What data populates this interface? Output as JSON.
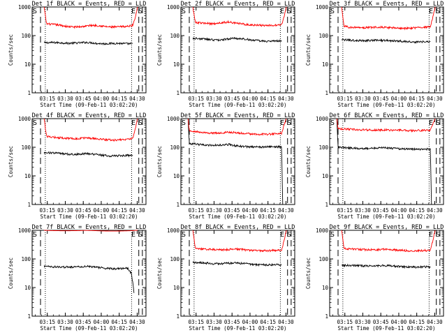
{
  "colors": {
    "events": "#000000",
    "lld": "#ff0000",
    "frame": "#000000",
    "background": "#ffffff"
  },
  "y_axis_label": "Counts/sec",
  "x_axis_label": "Start Time (09-Feb-11 03:02:20)",
  "x_tick_labels": [
    "03:15",
    "03:30",
    "03:45",
    "04:00",
    "04:15",
    "04:30"
  ],
  "y_tick_labels": [
    "1",
    "10",
    "100",
    "1000"
  ],
  "chart_data": [
    {
      "type": "line",
      "title": "Det 1f BLACK = Events, RED = LLD",
      "x_unit": "minutes after 03:02:20",
      "xlim": [
        0,
        95
      ],
      "ylim": [
        1,
        1000
      ],
      "y_scale": "log",
      "grid": false,
      "edge_labels": [
        "S",
        "E",
        "S"
      ],
      "series": [
        {
          "name": "Events",
          "color": "#000000",
          "x": [
            10,
            15,
            20,
            25,
            30,
            35,
            40,
            45,
            50,
            55,
            60,
            65,
            70,
            75,
            80,
            84
          ],
          "values": [
            56,
            57,
            57,
            56,
            54,
            55,
            56,
            58,
            56,
            53,
            52,
            53,
            54,
            53,
            52,
            52
          ]
        },
        {
          "name": "LLD",
          "color": "#ff0000",
          "x": [
            10,
            12,
            15,
            20,
            25,
            30,
            35,
            40,
            45,
            50,
            55,
            60,
            65,
            70,
            75,
            80,
            84,
            86,
            88
          ],
          "values": [
            1000,
            260,
            250,
            240,
            225,
            205,
            200,
            205,
            215,
            230,
            225,
            210,
            200,
            200,
            205,
            210,
            230,
            420,
            1000
          ]
        }
      ],
      "dashed_lines_x": [
        7,
        89,
        92
      ],
      "dotted_lines_x": [
        11,
        83
      ]
    },
    {
      "type": "line",
      "title": "Det 2f BLACK = Events, RED = LLD",
      "x_unit": "minutes after 03:02:20",
      "xlim": [
        0,
        95
      ],
      "ylim": [
        1,
        1000
      ],
      "y_scale": "log",
      "grid": false,
      "edge_labels": [
        "S",
        "E",
        "S"
      ],
      "series": [
        {
          "name": "Events",
          "color": "#000000",
          "x": [
            10,
            15,
            20,
            25,
            30,
            35,
            40,
            45,
            50,
            55,
            60,
            65,
            70,
            75,
            80,
            84
          ],
          "values": [
            80,
            78,
            76,
            72,
            70,
            72,
            78,
            80,
            78,
            74,
            70,
            66,
            64,
            63,
            65,
            66
          ]
        },
        {
          "name": "LLD",
          "color": "#ff0000",
          "x": [
            10,
            12,
            15,
            20,
            25,
            30,
            35,
            40,
            45,
            50,
            55,
            60,
            65,
            70,
            75,
            80,
            84,
            86,
            88
          ],
          "values": [
            1000,
            290,
            280,
            270,
            260,
            265,
            285,
            300,
            280,
            260,
            245,
            235,
            230,
            225,
            225,
            230,
            240,
            450,
            1000
          ]
        }
      ],
      "dashed_lines_x": [
        7,
        89,
        92
      ],
      "dotted_lines_x": [
        11,
        83
      ]
    },
    {
      "type": "line",
      "title": "Det 3f BLACK = Events, RED = LLD",
      "x_unit": "minutes after 03:02:20",
      "xlim": [
        0,
        95
      ],
      "ylim": [
        1,
        1000
      ],
      "y_scale": "log",
      "grid": false,
      "edge_labels": [
        "S",
        "E",
        "S"
      ],
      "series": [
        {
          "name": "Events",
          "color": "#000000",
          "x": [
            10,
            15,
            20,
            25,
            30,
            35,
            40,
            45,
            50,
            55,
            60,
            65,
            70,
            75,
            80,
            84
          ],
          "values": [
            72,
            70,
            68,
            67,
            67,
            68,
            69,
            68,
            67,
            66,
            64,
            62,
            60,
            60,
            61,
            60
          ]
        },
        {
          "name": "LLD",
          "color": "#ff0000",
          "x": [
            10,
            12,
            15,
            20,
            25,
            30,
            35,
            40,
            45,
            50,
            55,
            60,
            65,
            70,
            75,
            80,
            84,
            86,
            88
          ],
          "values": [
            1000,
            210,
            200,
            195,
            190,
            190,
            195,
            200,
            195,
            190,
            185,
            180,
            180,
            185,
            190,
            195,
            200,
            420,
            1000
          ]
        }
      ],
      "dashed_lines_x": [
        7,
        89,
        92
      ],
      "dotted_lines_x": [
        11,
        83
      ]
    },
    {
      "type": "line",
      "title": "Det 4f BLACK = Events, RED = LLD",
      "x_unit": "minutes after 03:02:20",
      "xlim": [
        0,
        95
      ],
      "ylim": [
        1,
        1000
      ],
      "y_scale": "log",
      "grid": false,
      "edge_labels": [
        "S",
        "E",
        "S"
      ],
      "series": [
        {
          "name": "Events",
          "color": "#000000",
          "x": [
            10,
            15,
            20,
            25,
            30,
            35,
            40,
            45,
            50,
            55,
            60,
            65,
            70,
            75,
            80,
            84
          ],
          "values": [
            65,
            64,
            63,
            60,
            58,
            57,
            58,
            60,
            58,
            55,
            52,
            50,
            50,
            51,
            52,
            52
          ]
        },
        {
          "name": "LLD",
          "color": "#ff0000",
          "x": [
            10,
            12,
            15,
            20,
            25,
            30,
            35,
            40,
            45,
            50,
            55,
            60,
            65,
            70,
            75,
            80,
            84,
            86,
            88
          ],
          "values": [
            1000,
            240,
            230,
            220,
            210,
            205,
            200,
            205,
            210,
            205,
            195,
            185,
            180,
            180,
            185,
            190,
            200,
            420,
            1000
          ]
        }
      ],
      "dashed_lines_x": [
        7,
        89,
        92
      ],
      "dotted_lines_x": [
        11,
        83
      ]
    },
    {
      "type": "line",
      "title": "Det 5f BLACK = Events, RED = LLD",
      "x_unit": "minutes after 03:02:20",
      "xlim": [
        0,
        95
      ],
      "ylim": [
        1,
        1000
      ],
      "y_scale": "log",
      "grid": false,
      "edge_labels": [
        "S",
        "E",
        "S"
      ],
      "series": [
        {
          "name": "Events",
          "color": "#000000",
          "x": [
            6,
            7,
            10,
            15,
            20,
            25,
            30,
            35,
            40,
            45,
            50,
            55,
            60,
            65,
            70,
            75,
            80,
            84,
            85
          ],
          "values": [
            1000,
            135,
            130,
            125,
            120,
            118,
            118,
            120,
            125,
            115,
            108,
            105,
            103,
            102,
            103,
            104,
            104,
            104,
            1
          ]
        },
        {
          "name": "LLD",
          "color": "#ff0000",
          "x": [
            6,
            7,
            10,
            15,
            20,
            25,
            30,
            35,
            40,
            45,
            50,
            55,
            60,
            65,
            70,
            75,
            80,
            84,
            86,
            88
          ],
          "values": [
            1000,
            380,
            360,
            340,
            320,
            310,
            310,
            320,
            340,
            330,
            310,
            300,
            290,
            285,
            285,
            290,
            300,
            310,
            600,
            1000
          ]
        }
      ],
      "dashed_lines_x": [
        7,
        89,
        92
      ],
      "dotted_lines_x": [
        11,
        83
      ]
    },
    {
      "type": "line",
      "title": "Det 6f BLACK = Events, RED = LLD",
      "x_unit": "minutes after 03:02:20",
      "xlim": [
        0,
        95
      ],
      "ylim": [
        1,
        1000
      ],
      "y_scale": "log",
      "grid": false,
      "edge_labels": [
        "S",
        "E",
        "S"
      ],
      "series": [
        {
          "name": "Events",
          "color": "#000000",
          "x": [
            6,
            7,
            10,
            15,
            20,
            25,
            30,
            35,
            40,
            45,
            50,
            55,
            60,
            65,
            70,
            75,
            80,
            84,
            85
          ],
          "values": [
            1000,
            100,
            98,
            96,
            94,
            92,
            92,
            93,
            95,
            97,
            94,
            90,
            88,
            86,
            85,
            85,
            86,
            86,
            1
          ]
        },
        {
          "name": "LLD",
          "color": "#ff0000",
          "x": [
            6,
            7,
            10,
            15,
            20,
            25,
            30,
            35,
            40,
            45,
            50,
            55,
            60,
            65,
            70,
            75,
            80,
            84,
            86,
            88
          ],
          "values": [
            1000,
            450,
            440,
            430,
            420,
            410,
            405,
            400,
            400,
            405,
            400,
            395,
            390,
            385,
            385,
            390,
            395,
            400,
            650,
            1000
          ]
        }
      ],
      "dashed_lines_x": [
        7,
        89,
        92
      ],
      "dotted_lines_x": [
        11,
        83
      ]
    },
    {
      "type": "line",
      "title": "Det 7f BLACK = Events, RED = LLD",
      "x_unit": "minutes after 03:02:20",
      "xlim": [
        0,
        95
      ],
      "ylim": [
        1,
        1000
      ],
      "y_scale": "log",
      "grid": false,
      "edge_labels": [
        "S",
        "E",
        "S"
      ],
      "series": [
        {
          "name": "Events",
          "color": "#000000",
          "x": [
            10,
            15,
            20,
            25,
            30,
            35,
            40,
            45,
            50,
            55,
            60,
            65,
            70,
            75,
            80,
            83,
            85
          ],
          "values": [
            55,
            54,
            53,
            52,
            52,
            53,
            54,
            55,
            53,
            50,
            48,
            46,
            45,
            46,
            47,
            30,
            7
          ]
        },
        {
          "name": "LLD",
          "color": "#ff0000",
          "x": [
            10,
            15,
            20,
            25,
            30,
            35,
            40,
            45,
            50,
            55,
            60,
            65,
            70,
            75,
            80,
            84,
            86,
            88
          ],
          "values": [
            1000,
            980,
            970,
            960,
            960,
            970,
            980,
            990,
            980,
            960,
            950,
            940,
            940,
            950,
            960,
            970,
            990,
            1000
          ]
        }
      ],
      "dashed_lines_x": [
        7,
        89,
        92
      ],
      "dotted_lines_x": [
        11,
        83
      ]
    },
    {
      "type": "line",
      "title": "Det 8f BLACK = Events, RED = LLD",
      "x_unit": "minutes after 03:02:20",
      "xlim": [
        0,
        95
      ],
      "ylim": [
        1,
        1000
      ],
      "y_scale": "log",
      "grid": false,
      "edge_labels": [
        "S",
        "E",
        "S"
      ],
      "series": [
        {
          "name": "Events",
          "color": "#000000",
          "x": [
            10,
            15,
            20,
            25,
            30,
            35,
            40,
            45,
            50,
            55,
            60,
            65,
            70,
            75,
            80,
            84
          ],
          "values": [
            75,
            74,
            72,
            70,
            68,
            69,
            71,
            72,
            70,
            67,
            65,
            63,
            62,
            62,
            63,
            63
          ]
        },
        {
          "name": "LLD",
          "color": "#ff0000",
          "x": [
            10,
            12,
            15,
            20,
            25,
            30,
            35,
            40,
            45,
            50,
            55,
            60,
            65,
            70,
            75,
            80,
            84,
            86,
            88
          ],
          "values": [
            1000,
            230,
            225,
            220,
            215,
            210,
            210,
            215,
            220,
            215,
            205,
            200,
            195,
            195,
            195,
            200,
            205,
            420,
            1000
          ]
        }
      ],
      "dashed_lines_x": [
        7,
        89,
        92
      ],
      "dotted_lines_x": [
        11,
        83
      ]
    },
    {
      "type": "line",
      "title": "Det 9f BLACK = Events, RED = LLD",
      "x_unit": "minutes after 03:02:20",
      "xlim": [
        0,
        95
      ],
      "ylim": [
        1,
        1000
      ],
      "y_scale": "log",
      "grid": false,
      "edge_labels": [
        "S",
        "E",
        "S"
      ],
      "series": [
        {
          "name": "Events",
          "color": "#000000",
          "x": [
            10,
            15,
            20,
            25,
            30,
            35,
            40,
            45,
            50,
            55,
            60,
            65,
            70,
            75,
            80,
            84
          ],
          "values": [
            60,
            60,
            59,
            58,
            57,
            57,
            58,
            59,
            58,
            56,
            54,
            52,
            52,
            52,
            53,
            53
          ]
        },
        {
          "name": "LLD",
          "color": "#ff0000",
          "x": [
            10,
            12,
            15,
            20,
            25,
            30,
            35,
            40,
            45,
            50,
            55,
            60,
            65,
            70,
            75,
            80,
            84,
            86,
            88
          ],
          "values": [
            1000,
            230,
            225,
            220,
            215,
            210,
            210,
            212,
            215,
            212,
            205,
            200,
            195,
            195,
            195,
            198,
            200,
            420,
            1000
          ]
        }
      ],
      "dashed_lines_x": [
        7,
        89,
        92
      ],
      "dotted_lines_x": [
        11,
        83
      ]
    }
  ]
}
